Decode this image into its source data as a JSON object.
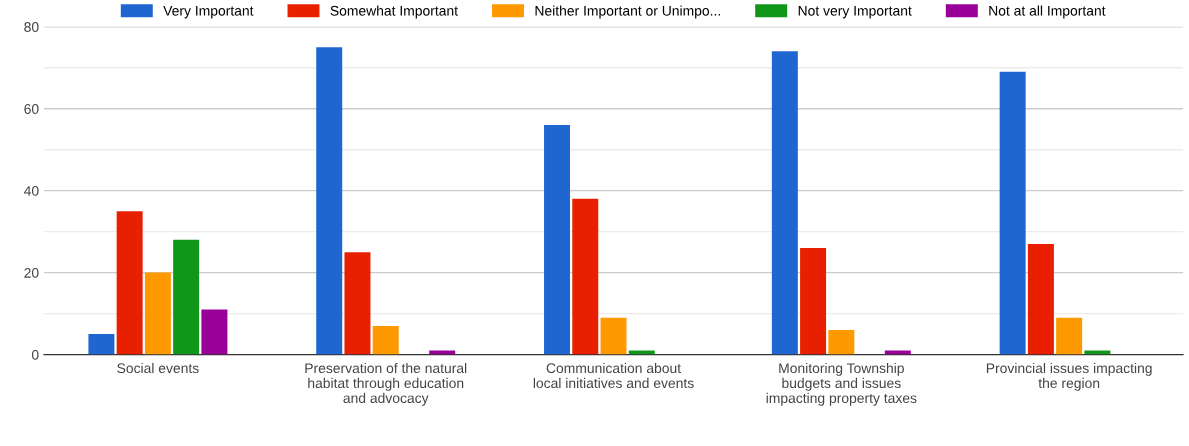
{
  "chart_data": {
    "type": "bar",
    "categories": [
      "Social events",
      "Preservation of the natural\nhabitat through education\nand advocacy",
      "Communication about\nlocal initiatives and events",
      "Monitoring Township\nbudgets and issues\nimpacting property taxes",
      "Provincial issues impacting\nthe region"
    ],
    "series": [
      {
        "name": "Very Important",
        "color": "#1f66d1",
        "values": [
          5,
          75,
          56,
          74,
          69
        ]
      },
      {
        "name": "Somewhat Important",
        "color": "#e82000",
        "values": [
          35,
          25,
          38,
          26,
          27
        ]
      },
      {
        "name": "Neither Important or Unimpo...",
        "color": "#ff9900",
        "values": [
          20,
          7,
          9,
          6,
          9
        ]
      },
      {
        "name": "Not very Important",
        "color": "#109618",
        "values": [
          28,
          0,
          1,
          0,
          1
        ]
      },
      {
        "name": "Not at all Important",
        "color": "#990099",
        "values": [
          11,
          1,
          0,
          1,
          0
        ]
      }
    ],
    "ylim": [
      0,
      80
    ],
    "yticks": [
      0,
      {
        "value": 10,
        "label": null
      },
      20,
      {
        "value": 30,
        "label": null
      },
      40,
      {
        "value": 50,
        "label": null
      },
      60,
      {
        "value": 70,
        "label": null
      },
      80
    ],
    "grid": "y",
    "legend": "top"
  }
}
